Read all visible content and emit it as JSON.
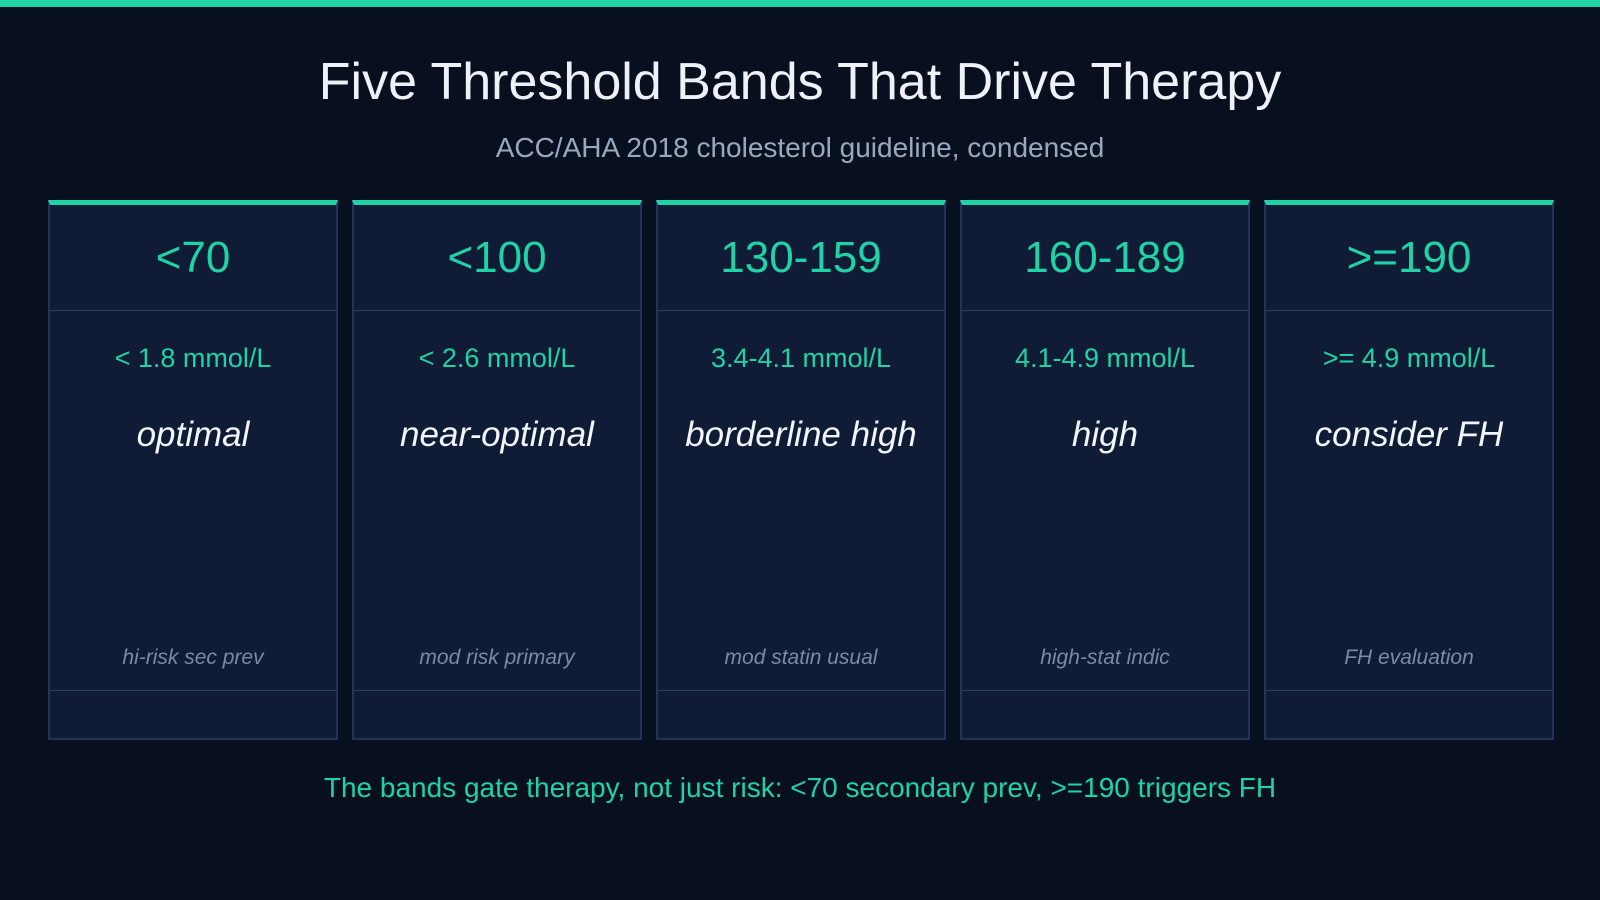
{
  "header": {
    "title": "Five Threshold Bands That Drive Therapy",
    "subtitle": "ACC/AHA 2018 cholesterol guideline, condensed"
  },
  "cards": [
    {
      "value": "<70",
      "mmol": "< 1.8 mmol/L",
      "label": "optimal",
      "note": "hi-risk sec prev"
    },
    {
      "value": "<100",
      "mmol": "< 2.6 mmol/L",
      "label": "near-optimal",
      "note": "mod risk primary"
    },
    {
      "value": "130-159",
      "mmol": "3.4-4.1 mmol/L",
      "label": "borderline high",
      "note": "mod statin usual"
    },
    {
      "value": "160-189",
      "mmol": "4.1-4.9 mmol/L",
      "label": "high",
      "note": "high-stat indic"
    },
    {
      "value": ">=190",
      "mmol": ">= 4.9 mmol/L",
      "label": "consider FH",
      "note": "FH evaluation"
    }
  ],
  "footer": "The bands gate therapy, not just risk: <70 secondary prev, >=190 triggers FH"
}
